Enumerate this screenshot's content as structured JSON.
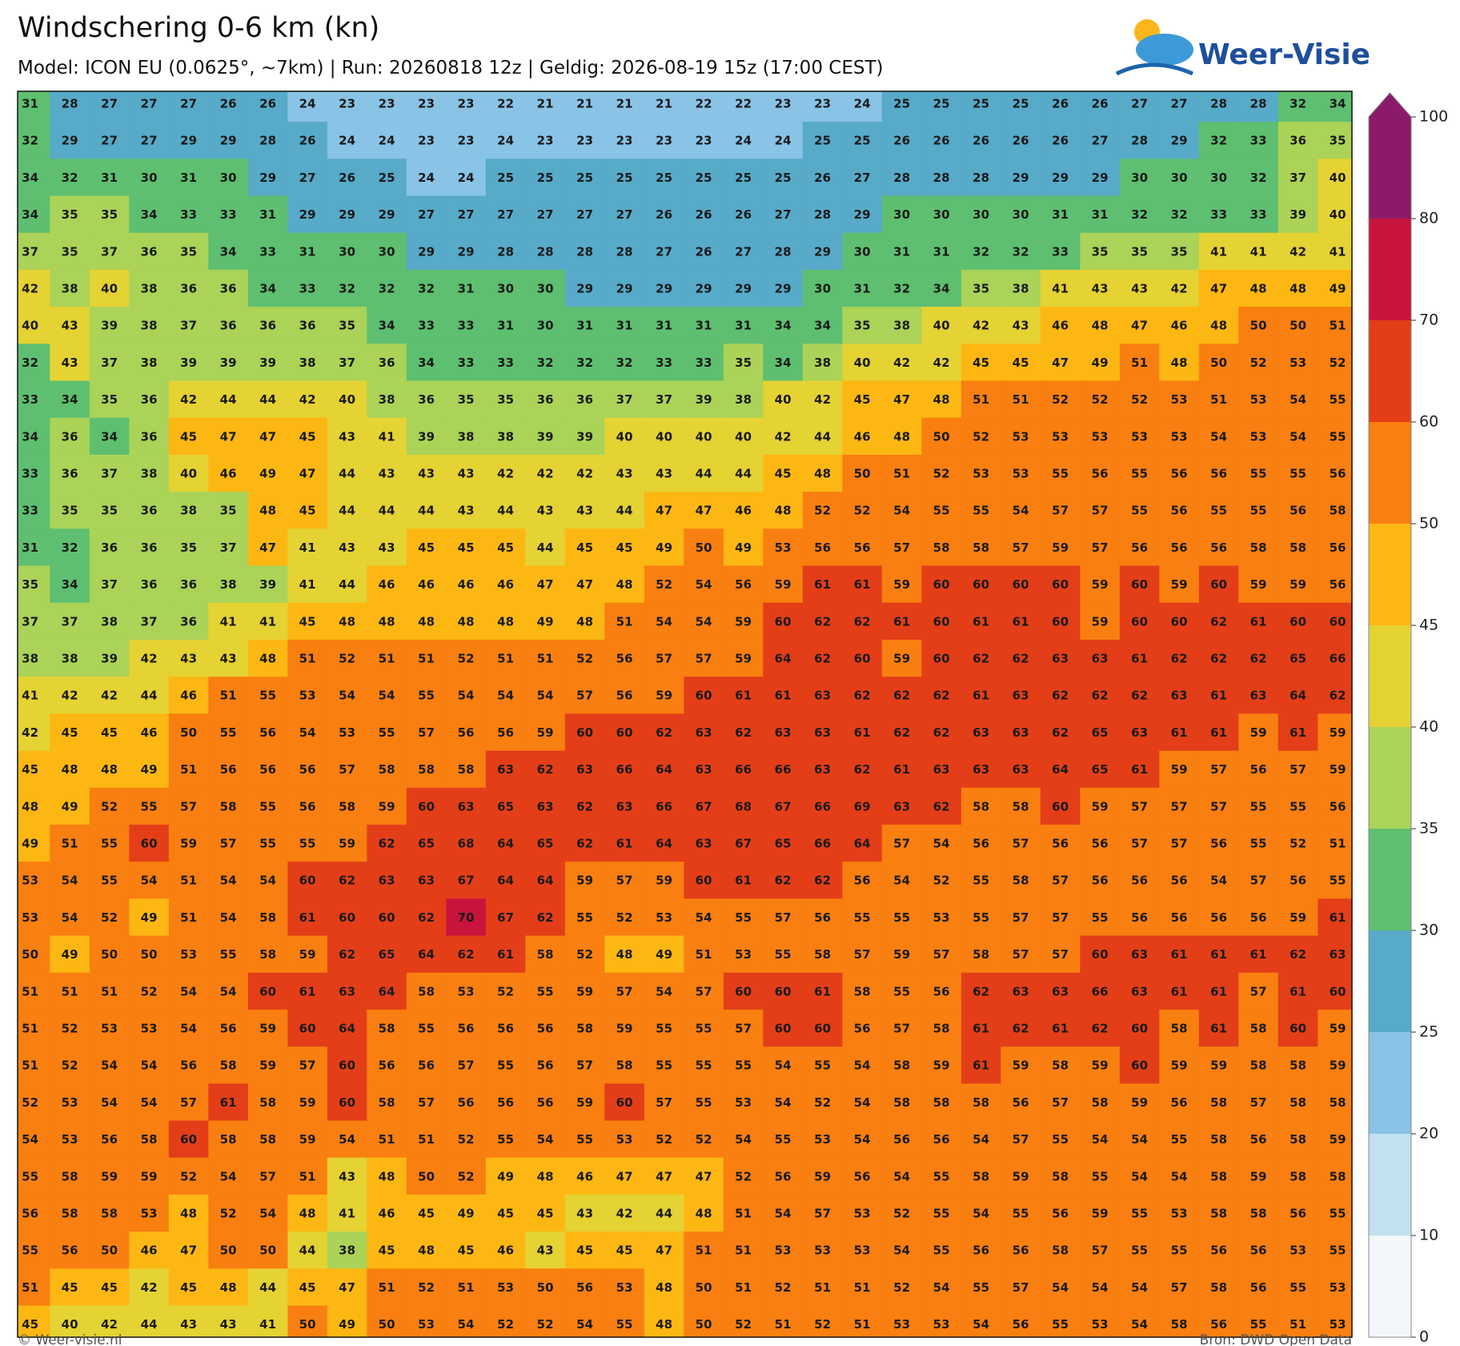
{
  "header": {
    "title": "Windschering 0-6 km (kn)",
    "subtitle": "Model: ICON EU (0.0625°, ~7km)  |  Run: 20260818 12z  |  Geldig: 2026-08-19 15z (17:00 CEST)",
    "logo": "Weer-Visie"
  },
  "map": {
    "rows": [
      [
        31,
        28,
        27,
        27,
        27,
        26,
        26,
        24,
        23,
        23,
        23,
        23,
        22,
        21,
        21,
        21,
        21,
        22,
        22,
        23,
        23,
        24,
        25,
        25,
        25,
        25,
        26,
        26,
        27,
        27,
        28,
        28,
        32,
        34
      ],
      [
        32,
        29,
        27,
        27,
        29,
        29,
        28,
        26,
        24,
        24,
        23,
        23,
        24,
        23,
        23,
        23,
        23,
        23,
        24,
        24,
        25,
        25,
        26,
        26,
        26,
        26,
        26,
        27,
        28,
        29,
        32,
        33,
        36,
        35
      ],
      [
        34,
        32,
        31,
        30,
        31,
        30,
        29,
        27,
        26,
        25,
        24,
        24,
        25,
        25,
        25,
        25,
        25,
        25,
        25,
        25,
        26,
        27,
        28,
        28,
        28,
        29,
        29,
        29,
        30,
        30,
        30,
        32,
        37,
        40
      ],
      [
        34,
        35,
        35,
        34,
        33,
        33,
        31,
        29,
        29,
        29,
        27,
        27,
        27,
        27,
        27,
        27,
        26,
        26,
        26,
        27,
        28,
        29,
        30,
        30,
        30,
        30,
        31,
        31,
        32,
        32,
        33,
        33,
        39,
        40
      ],
      [
        37,
        35,
        37,
        36,
        35,
        34,
        33,
        31,
        30,
        30,
        29,
        29,
        28,
        28,
        28,
        28,
        27,
        26,
        27,
        28,
        29,
        30,
        31,
        31,
        32,
        32,
        33,
        35,
        35,
        35,
        41,
        41,
        42,
        41
      ],
      [
        42,
        38,
        40,
        38,
        36,
        36,
        34,
        33,
        32,
        32,
        32,
        31,
        30,
        30,
        29,
        29,
        29,
        29,
        29,
        29,
        30,
        31,
        32,
        34,
        35,
        38,
        41,
        43,
        43,
        42,
        47,
        48,
        48,
        49
      ],
      [
        40,
        43,
        39,
        38,
        37,
        36,
        36,
        36,
        35,
        34,
        33,
        33,
        31,
        30,
        31,
        31,
        31,
        31,
        31,
        34,
        34,
        35,
        38,
        40,
        42,
        43,
        46,
        48,
        47,
        46,
        48,
        50,
        50,
        51
      ],
      [
        32,
        43,
        37,
        38,
        39,
        39,
        39,
        38,
        37,
        36,
        34,
        33,
        33,
        32,
        32,
        32,
        33,
        33,
        35,
        34,
        38,
        40,
        42,
        42,
        45,
        45,
        47,
        49,
        51,
        48,
        50,
        52,
        53,
        52
      ],
      [
        33,
        34,
        35,
        36,
        42,
        44,
        44,
        42,
        40,
        38,
        36,
        35,
        35,
        36,
        36,
        37,
        37,
        39,
        38,
        40,
        42,
        45,
        47,
        48,
        51,
        51,
        52,
        52,
        52,
        53,
        51,
        53,
        54,
        55
      ],
      [
        34,
        36,
        34,
        36,
        45,
        47,
        47,
        45,
        43,
        41,
        39,
        38,
        38,
        39,
        39,
        40,
        40,
        40,
        40,
        42,
        44,
        46,
        48,
        50,
        52,
        53,
        53,
        53,
        53,
        53,
        54,
        53,
        54,
        55
      ],
      [
        33,
        36,
        37,
        38,
        40,
        46,
        49,
        47,
        44,
        43,
        43,
        43,
        42,
        42,
        42,
        43,
        43,
        44,
        44,
        45,
        48,
        50,
        51,
        52,
        53,
        53,
        55,
        56,
        55,
        56,
        56,
        55,
        55,
        56
      ],
      [
        33,
        35,
        35,
        36,
        38,
        35,
        48,
        45,
        44,
        44,
        44,
        43,
        44,
        43,
        43,
        44,
        47,
        47,
        46,
        48,
        52,
        52,
        54,
        55,
        55,
        54,
        57,
        57,
        55,
        56,
        55,
        55,
        56,
        58
      ],
      [
        31,
        32,
        36,
        36,
        35,
        37,
        47,
        41,
        43,
        43,
        45,
        45,
        45,
        44,
        45,
        45,
        49,
        50,
        49,
        53,
        56,
        56,
        57,
        58,
        58,
        57,
        59,
        57,
        56,
        56,
        56,
        58,
        58,
        56
      ],
      [
        35,
        34,
        37,
        36,
        36,
        38,
        39,
        41,
        44,
        46,
        46,
        46,
        46,
        47,
        47,
        48,
        52,
        54,
        56,
        59,
        61,
        61,
        59,
        60,
        60,
        60,
        60,
        59,
        60,
        59,
        60,
        59,
        59,
        56
      ],
      [
        37,
        37,
        38,
        37,
        36,
        41,
        41,
        45,
        48,
        48,
        48,
        48,
        48,
        49,
        48,
        51,
        54,
        54,
        59,
        60,
        62,
        62,
        61,
        60,
        61,
        61,
        60,
        59,
        60,
        60,
        62,
        61,
        60,
        60
      ],
      [
        38,
        38,
        39,
        42,
        43,
        43,
        48,
        51,
        52,
        51,
        51,
        52,
        51,
        51,
        52,
        56,
        57,
        57,
        59,
        64,
        62,
        60,
        59,
        60,
        62,
        62,
        63,
        63,
        61,
        62,
        62,
        62,
        65,
        66
      ],
      [
        41,
        42,
        42,
        44,
        46,
        51,
        55,
        53,
        54,
        54,
        55,
        54,
        54,
        54,
        57,
        56,
        59,
        60,
        61,
        61,
        63,
        62,
        62,
        62,
        61,
        63,
        62,
        62,
        62,
        63,
        61,
        63,
        64,
        62
      ],
      [
        42,
        45,
        45,
        46,
        50,
        55,
        56,
        54,
        53,
        55,
        57,
        56,
        56,
        59,
        60,
        60,
        62,
        63,
        62,
        63,
        63,
        61,
        62,
        62,
        63,
        63,
        62,
        65,
        63,
        61,
        61,
        59,
        61,
        59
      ],
      [
        45,
        48,
        48,
        49,
        51,
        56,
        56,
        56,
        57,
        58,
        58,
        58,
        63,
        62,
        63,
        66,
        64,
        63,
        66,
        66,
        63,
        62,
        61,
        63,
        63,
        63,
        64,
        65,
        61,
        59,
        57,
        56,
        57,
        59
      ],
      [
        48,
        49,
        52,
        55,
        57,
        58,
        55,
        56,
        58,
        59,
        60,
        63,
        65,
        63,
        62,
        63,
        66,
        67,
        68,
        67,
        66,
        69,
        63,
        62,
        58,
        58,
        60,
        59,
        57,
        57,
        57,
        55,
        55,
        56
      ],
      [
        49,
        51,
        55,
        60,
        59,
        57,
        55,
        55,
        59,
        62,
        65,
        68,
        64,
        65,
        62,
        61,
        64,
        63,
        67,
        65,
        66,
        64,
        57,
        54,
        56,
        57,
        56,
        56,
        57,
        57,
        56,
        55,
        52,
        51
      ],
      [
        53,
        54,
        55,
        54,
        51,
        54,
        54,
        60,
        62,
        63,
        63,
        67,
        64,
        64,
        59,
        57,
        59,
        60,
        61,
        62,
        62,
        56,
        54,
        52,
        55,
        58,
        57,
        56,
        56,
        56,
        54,
        57,
        56,
        55
      ],
      [
        53,
        54,
        52,
        49,
        51,
        54,
        58,
        61,
        60,
        60,
        62,
        70,
        67,
        62,
        55,
        52,
        53,
        54,
        55,
        57,
        56,
        55,
        55,
        53,
        55,
        57,
        57,
        55,
        56,
        56,
        56,
        56,
        59,
        61
      ],
      [
        50,
        49,
        50,
        50,
        53,
        55,
        58,
        59,
        62,
        65,
        64,
        62,
        61,
        58,
        52,
        48,
        49,
        51,
        53,
        55,
        58,
        57,
        59,
        57,
        58,
        57,
        57,
        60,
        63,
        61,
        61,
        61,
        62,
        63
      ],
      [
        51,
        51,
        51,
        52,
        54,
        54,
        60,
        61,
        63,
        64,
        58,
        53,
        52,
        55,
        59,
        57,
        54,
        57,
        60,
        60,
        61,
        58,
        55,
        56,
        62,
        63,
        63,
        66,
        63,
        61,
        61,
        57,
        61,
        60
      ],
      [
        51,
        52,
        53,
        53,
        54,
        56,
        59,
        60,
        64,
        58,
        55,
        56,
        56,
        56,
        58,
        59,
        55,
        55,
        57,
        60,
        60,
        56,
        57,
        58,
        61,
        62,
        61,
        62,
        60,
        58,
        61,
        58,
        60,
        59
      ],
      [
        51,
        52,
        54,
        54,
        56,
        58,
        59,
        57,
        60,
        56,
        56,
        57,
        55,
        56,
        57,
        58,
        55,
        55,
        55,
        54,
        55,
        54,
        58,
        59,
        61,
        59,
        58,
        59,
        60,
        59,
        59,
        58,
        58,
        59
      ],
      [
        52,
        53,
        54,
        54,
        57,
        61,
        58,
        59,
        60,
        58,
        57,
        56,
        56,
        56,
        59,
        60,
        57,
        55,
        53,
        54,
        52,
        54,
        58,
        58,
        58,
        56,
        57,
        58,
        59,
        56,
        58,
        57,
        58,
        58
      ],
      [
        54,
        53,
        56,
        58,
        60,
        58,
        58,
        59,
        54,
        51,
        51,
        52,
        55,
        54,
        55,
        53,
        52,
        52,
        54,
        55,
        53,
        54,
        56,
        56,
        54,
        57,
        55,
        54,
        54,
        55,
        58,
        56,
        58,
        59
      ],
      [
        55,
        58,
        59,
        59,
        52,
        54,
        57,
        51,
        43,
        48,
        50,
        52,
        49,
        48,
        46,
        47,
        47,
        47,
        52,
        56,
        59,
        56,
        54,
        55,
        58,
        59,
        58,
        55,
        54,
        54,
        58,
        59,
        58,
        58
      ],
      [
        56,
        58,
        58,
        53,
        48,
        52,
        54,
        48,
        41,
        46,
        45,
        49,
        45,
        45,
        43,
        42,
        44,
        48,
        51,
        54,
        57,
        53,
        52,
        55,
        54,
        55,
        56,
        59,
        55,
        53,
        58,
        58,
        56,
        55
      ],
      [
        55,
        56,
        50,
        46,
        47,
        50,
        50,
        44,
        38,
        45,
        48,
        45,
        46,
        43,
        45,
        45,
        47,
        51,
        51,
        53,
        53,
        53,
        54,
        55,
        56,
        56,
        58,
        57,
        55,
        55,
        56,
        56,
        53,
        55
      ],
      [
        51,
        45,
        45,
        42,
        45,
        48,
        44,
        45,
        47,
        51,
        52,
        51,
        53,
        50,
        56,
        53,
        48,
        50,
        51,
        52,
        51,
        51,
        52,
        54,
        55,
        57,
        54,
        54,
        54,
        57,
        58,
        56,
        55,
        53
      ],
      [
        45,
        40,
        42,
        44,
        43,
        43,
        41,
        50,
        49,
        50,
        53,
        54,
        52,
        52,
        54,
        55,
        48,
        50,
        52,
        51,
        52,
        51,
        53,
        53,
        54,
        56,
        55,
        53,
        54,
        58,
        56,
        55,
        51,
        53
      ]
    ]
  },
  "colorbar": {
    "ticks": [
      0,
      10,
      20,
      25,
      30,
      35,
      40,
      45,
      50,
      60,
      70,
      80,
      100
    ],
    "colors": [
      "#f3f7fb",
      "#c3e0f1",
      "#89c3e5",
      "#57aac8",
      "#5ebf70",
      "#aad358",
      "#e5d233",
      "#fdb713",
      "#f97f10",
      "#e33e18",
      "#c8143c",
      "#8b1a6b"
    ]
  },
  "footer": {
    "left": "© Weer-visie.nl",
    "right": "Bron: DWD Open Data"
  }
}
